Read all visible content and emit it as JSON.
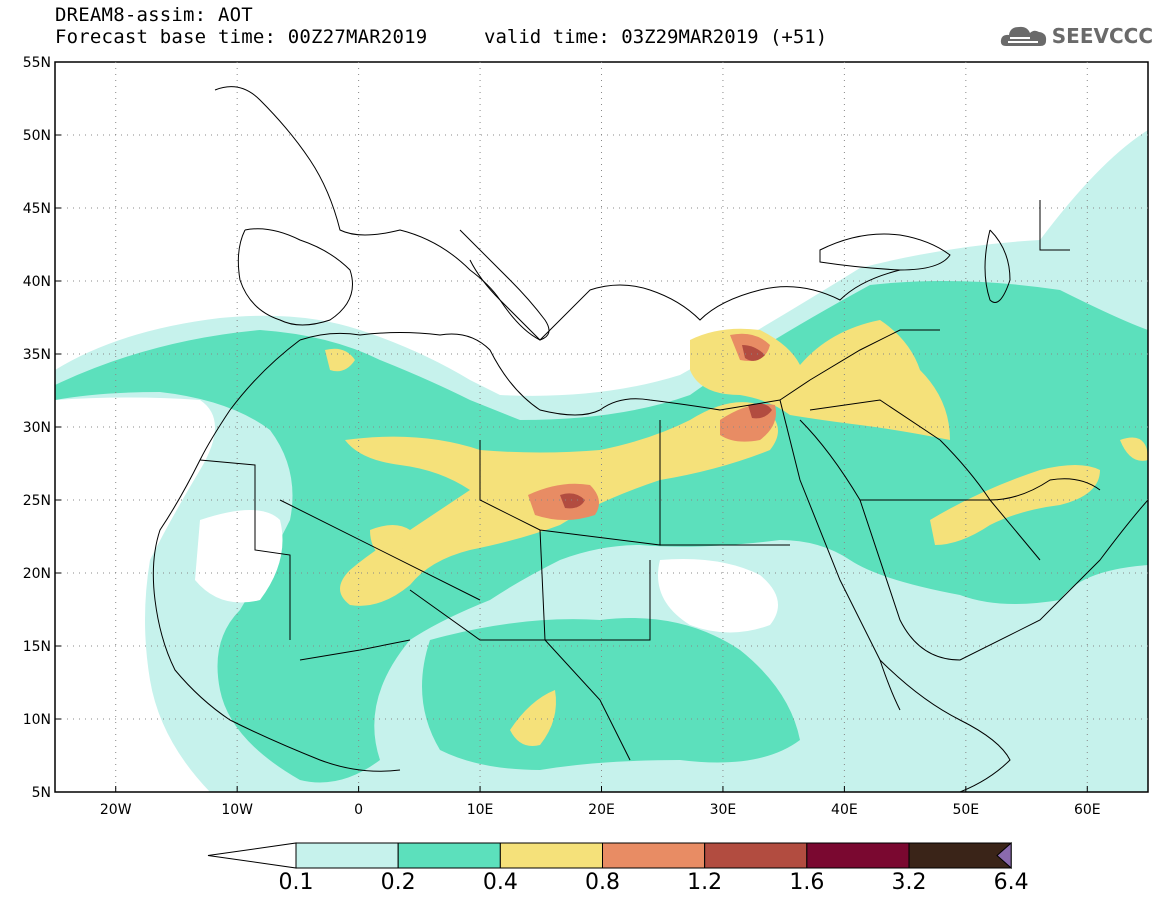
{
  "header": {
    "title": "DREAM8-assim: AOT",
    "base_time": "Forecast base time: 00Z27MAR2019",
    "valid_time": "valid time: 03Z29MAR2019 (+51)"
  },
  "logo": {
    "text": "SEEVCCC",
    "icon": "cloud-icon"
  },
  "map": {
    "lon_range": [
      -25,
      65
    ],
    "lat_range": [
      5,
      55
    ],
    "lat_labels": [
      "55N",
      "50N",
      "45N",
      "40N",
      "35N",
      "30N",
      "25N",
      "20N",
      "15N",
      "10N",
      "5N"
    ],
    "lon_labels": [
      "20W",
      "10W",
      "0",
      "10E",
      "20E",
      "30E",
      "40E",
      "50E",
      "60E"
    ],
    "grid": "dotted"
  },
  "colorbar": {
    "levels": [
      "0.1",
      "0.2",
      "0.4",
      "0.8",
      "1.2",
      "1.6",
      "3.2",
      "6.4"
    ],
    "colors": [
      "#c6f2ec",
      "#5ce0bc",
      "#f5e17a",
      "#e88c64",
      "#b24c40",
      "#7a0830",
      "#3a2418",
      "#8a6aae"
    ]
  }
}
